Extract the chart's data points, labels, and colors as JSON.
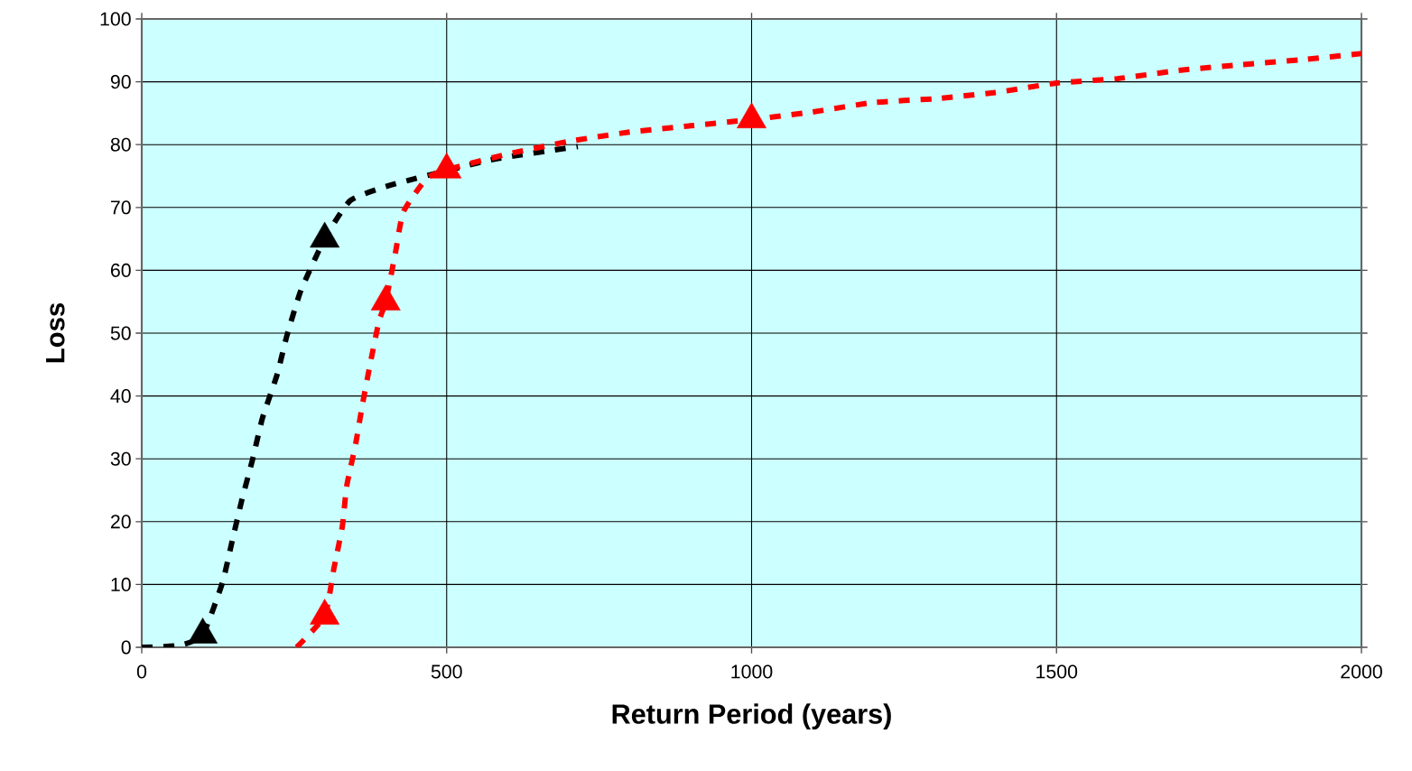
{
  "chart_data": {
    "type": "line",
    "xlabel": "Return Period (years)",
    "ylabel": "Loss",
    "xlim": [
      0,
      2000
    ],
    "xticks": [
      0,
      500,
      1000,
      1500,
      2000
    ],
    "ylim": [
      0,
      100
    ],
    "yticks": [
      0,
      10,
      20,
      30,
      40,
      50,
      60,
      70,
      80,
      90,
      100
    ],
    "grid": true,
    "series": [
      {
        "color": "#000000",
        "line_style": "dashed",
        "marker": "none",
        "x": [
          0,
          62,
          100,
          132,
          148,
          164,
          182,
          198,
          222,
          238,
          261,
          300,
          342,
          410,
          500,
          574,
          715
        ],
        "values": [
          0,
          0.3,
          2,
          10.2,
          16.8,
          23.4,
          30,
          36.5,
          43.4,
          49.6,
          56.8,
          65,
          71.1,
          73.6,
          null,
          77.6,
          79.7
        ]
      },
      {
        "color": "#ff0000",
        "line_style": "dashed",
        "marker": "none",
        "x": [
          254,
          300,
          315,
          329,
          336,
          351,
          362,
          375,
          389,
          400,
          416,
          429,
          467,
          500,
          600,
          700,
          800,
          900,
          1000,
          1100,
          1200,
          1300,
          1400,
          1500,
          1600,
          1700,
          1800,
          1900,
          2000
        ],
        "values": [
          0,
          5,
          12.5,
          19.3,
          25.6,
          32.5,
          38.7,
          45.3,
          51.9,
          55,
          62.8,
          69.3,
          74.6,
          76,
          78.5,
          80.5,
          82,
          83,
          84,
          85.2,
          86.7,
          87.3,
          88.3,
          89.8,
          90.5,
          91.8,
          92.7,
          93.5,
          94.5
        ]
      },
      {
        "type": "scatter",
        "color": "#000000",
        "marker": "triangle",
        "x": [
          100,
          300
        ],
        "values": [
          2,
          65
        ]
      },
      {
        "type": "scatter",
        "color": "#ff0000",
        "marker": "triangle",
        "x": [
          300,
          400,
          500,
          1000
        ],
        "values": [
          5,
          55,
          76,
          84
        ]
      }
    ]
  }
}
